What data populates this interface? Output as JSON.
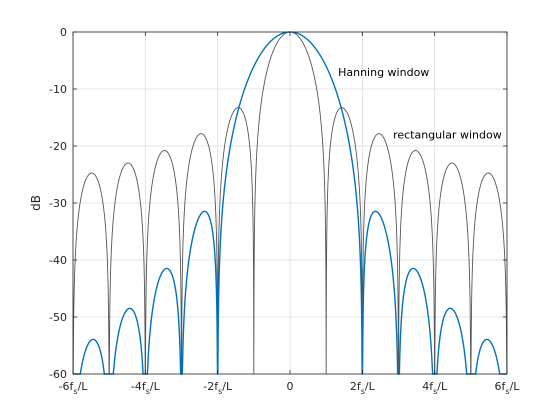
{
  "chart_data": {
    "type": "line",
    "title": "",
    "xlabel": "",
    "ylabel": "dB",
    "xlim": [
      -6,
      6
    ],
    "ylim": [
      -60,
      0
    ],
    "grid": true,
    "legend": "none",
    "x_ticks": [
      {
        "value": -6,
        "label": "-6f",
        "sub": "s",
        "tail": "/L"
      },
      {
        "value": -4,
        "label": "-4f",
        "sub": "s",
        "tail": "/L"
      },
      {
        "value": -2,
        "label": "-2f",
        "sub": "s",
        "tail": "/L"
      },
      {
        "value": 0,
        "label": "0",
        "sub": "",
        "tail": ""
      },
      {
        "value": 2,
        "label": "2f",
        "sub": "s",
        "tail": "/L"
      },
      {
        "value": 4,
        "label": "4f",
        "sub": "s",
        "tail": "/L"
      },
      {
        "value": 6,
        "label": "6f",
        "sub": "s",
        "tail": "/L"
      }
    ],
    "y_ticks": [
      {
        "value": 0,
        "label": "0"
      },
      {
        "value": -10,
        "label": "-10"
      },
      {
        "value": -20,
        "label": "-20"
      },
      {
        "value": -30,
        "label": "-30"
      },
      {
        "value": -40,
        "label": "-40"
      },
      {
        "value": -50,
        "label": "-50"
      },
      {
        "value": -60,
        "label": "-60"
      }
    ],
    "series": [
      {
        "key": "rectangular",
        "function": "sinc",
        "color": "#555555",
        "stroke_width": 0.9
      },
      {
        "key": "hanning",
        "function": "hanning",
        "color": "#0072BD",
        "stroke_width": 1.4
      }
    ],
    "annotations": [
      {
        "text": "Hanning window",
        "x": 1.33,
        "y": -7.7
      },
      {
        "text": "rectangular window",
        "x": 2.85,
        "y": -18.7
      }
    ]
  }
}
